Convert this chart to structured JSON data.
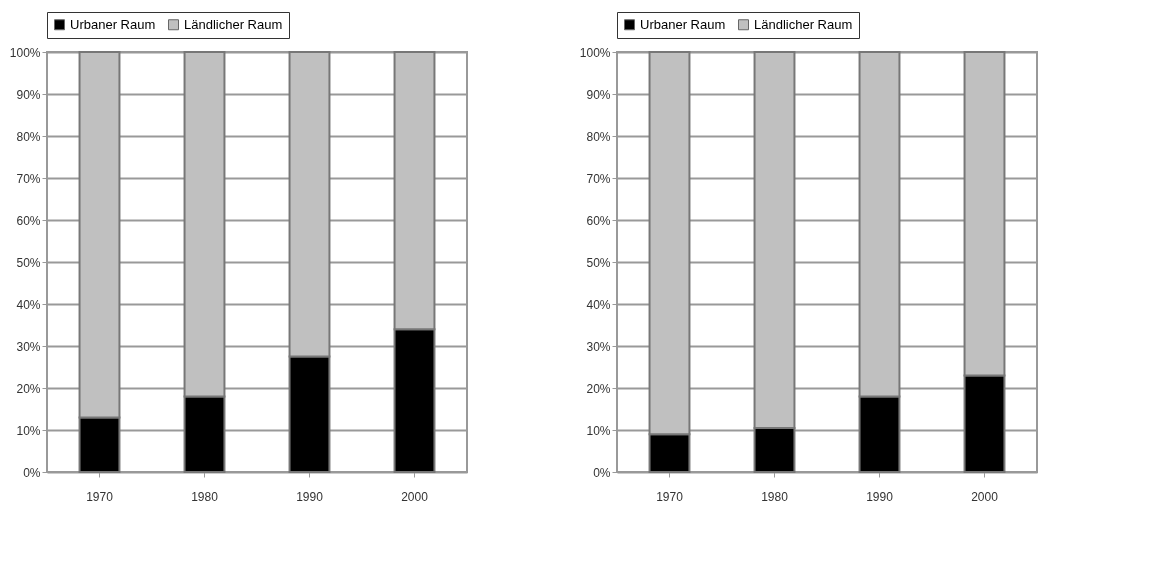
{
  "chart_data": [
    {
      "type": "bar",
      "stacked": true,
      "categories": [
        "1970",
        "1980",
        "1990",
        "2000"
      ],
      "series": [
        {
          "name": "Urbaner Raum",
          "color": "#000000",
          "values": [
            13,
            18,
            27.5,
            34
          ]
        },
        {
          "name": "Ländlicher Raum",
          "color": "#c0c0c0",
          "values": [
            87,
            82,
            72.5,
            66
          ]
        }
      ],
      "ylim": [
        0,
        100
      ],
      "yticks": [
        {
          "value": 0,
          "label": "0%"
        },
        {
          "value": 10,
          "label": "10%"
        },
        {
          "value": 20,
          "label": "20%"
        },
        {
          "value": 30,
          "label": "30%"
        },
        {
          "value": 40,
          "label": "40%"
        },
        {
          "value": 50,
          "label": "50%"
        },
        {
          "value": 60,
          "label": "60%"
        },
        {
          "value": 70,
          "label": "70%"
        },
        {
          "value": 80,
          "label": "80%"
        },
        {
          "value": 90,
          "label": "90%"
        },
        {
          "value": 100,
          "label": "100%"
        }
      ],
      "grid": "y",
      "legend": "top"
    },
    {
      "type": "bar",
      "stacked": true,
      "categories": [
        "1970",
        "1980",
        "1990",
        "2000"
      ],
      "series": [
        {
          "name": "Urbaner Raum",
          "color": "#000000",
          "values": [
            9,
            10.5,
            18,
            23
          ]
        },
        {
          "name": "Ländlicher Raum",
          "color": "#c0c0c0",
          "values": [
            91,
            89.5,
            82,
            77
          ]
        }
      ],
      "ylim": [
        0,
        100
      ],
      "yticks": [
        {
          "value": 0,
          "label": "0%"
        },
        {
          "value": 10,
          "label": "10%"
        },
        {
          "value": 20,
          "label": "20%"
        },
        {
          "value": 30,
          "label": "30%"
        },
        {
          "value": 40,
          "label": "40%"
        },
        {
          "value": 50,
          "label": "50%"
        },
        {
          "value": 60,
          "label": "60%"
        },
        {
          "value": 70,
          "label": "70%"
        },
        {
          "value": 80,
          "label": "80%"
        },
        {
          "value": 90,
          "label": "90%"
        },
        {
          "value": 100,
          "label": "100%"
        }
      ],
      "grid": "y",
      "legend": "top"
    }
  ]
}
